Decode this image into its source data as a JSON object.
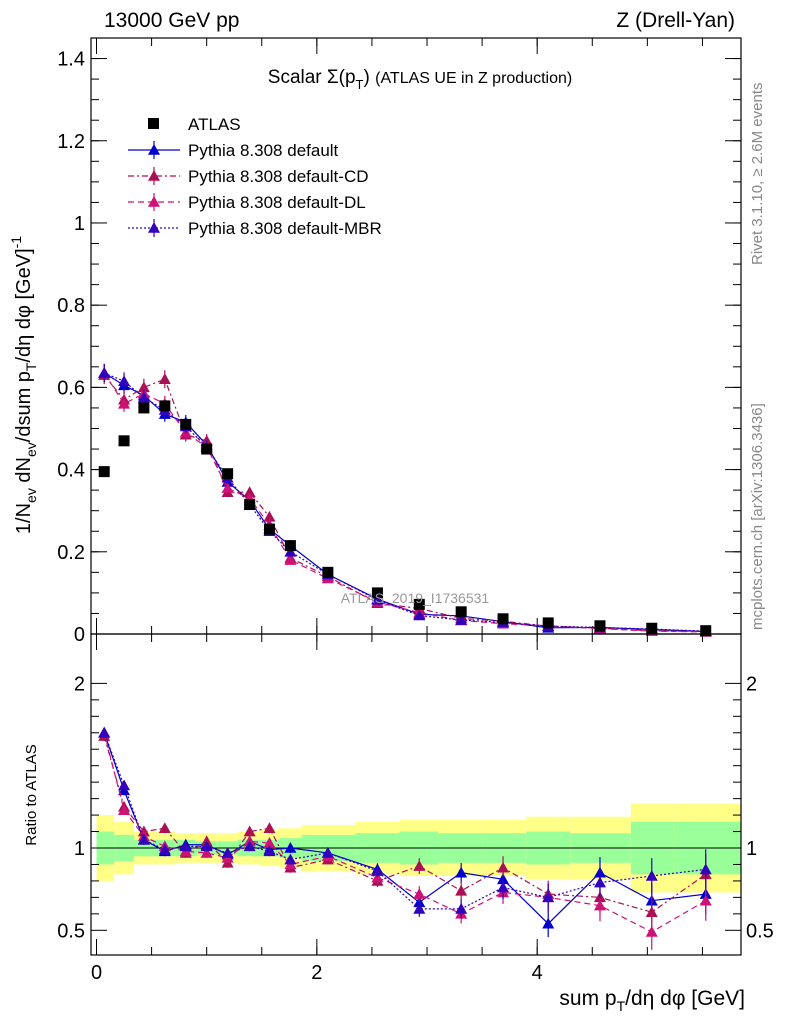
{
  "header": {
    "left": "13000 GeV pp",
    "right": "Z (Drell-Yan)"
  },
  "side_text": {
    "rivet": "Rivet 3.1.10, ≥ 2.6M events",
    "mcplots": "mcplots.cern.ch [arXiv:1306.3436]"
  },
  "chart_data": [
    {
      "type": "scatter",
      "title": "Scalar Σ(pT) (ATLAS UE in Z production)",
      "xlabel": "sum pT/dη dφ [GeV]",
      "ylabel": "1/Nev dNev/dsum pT/dη dφ [GeV]^-1",
      "watermark": "ATLAS_2019_I1736531",
      "xlim": [
        -0.05,
        5.85
      ],
      "ylim": [
        0,
        1.45
      ],
      "yticks": [
        "0",
        "0.2",
        "0.4",
        "0.6",
        "0.8",
        "1",
        "1.2",
        "1.4"
      ],
      "xticks": [
        "0",
        "2",
        "4"
      ],
      "legend_position": "top-left",
      "x": [
        0.07,
        0.25,
        0.43,
        0.62,
        0.81,
        1.0,
        1.19,
        1.39,
        1.57,
        1.76,
        2.1,
        2.55,
        2.93,
        3.31,
        3.69,
        4.1,
        4.57,
        5.04,
        5.53
      ],
      "series": [
        {
          "name": "ATLAS",
          "color": "#000000",
          "marker": "square",
          "values": [
            0.395,
            0.47,
            0.55,
            0.555,
            0.51,
            0.45,
            0.39,
            0.315,
            0.255,
            0.215,
            0.15,
            0.1,
            0.072,
            0.054,
            0.037,
            0.027,
            0.02,
            0.014,
            0.008
          ]
        },
        {
          "name": "Pythia 8.308 default",
          "color": "#0000cc",
          "marker": "triangle",
          "dash": "",
          "values": [
            0.635,
            0.605,
            0.58,
            0.535,
            0.515,
            0.46,
            0.37,
            0.325,
            0.255,
            0.215,
            0.145,
            0.085,
            0.048,
            0.044,
            0.03,
            0.015,
            0.016,
            0.011,
            0.006
          ]
        },
        {
          "name": "Pythia 8.308 default-CD",
          "color": "#aa1155",
          "marker": "triangle",
          "dash": "6,3,2,3",
          "values": [
            0.63,
            0.57,
            0.6,
            0.62,
            0.485,
            0.47,
            0.345,
            0.345,
            0.285,
            0.185,
            0.14,
            0.075,
            0.062,
            0.038,
            0.031,
            0.019,
            0.014,
            0.008,
            0.006
          ]
        },
        {
          "name": "Pythia 8.308 default-DL",
          "color": "#cc1177",
          "marker": "triangle",
          "dash": "6,4",
          "values": [
            0.635,
            0.56,
            0.585,
            0.56,
            0.49,
            0.455,
            0.355,
            0.33,
            0.265,
            0.18,
            0.135,
            0.078,
            0.052,
            0.033,
            0.025,
            0.02,
            0.013,
            0.007,
            0.005
          ]
        },
        {
          "name": "Pythia 8.308 default-MBR",
          "color": "#3300bb",
          "marker": "triangle",
          "dash": "2,2",
          "values": [
            0.635,
            0.615,
            0.575,
            0.545,
            0.505,
            0.455,
            0.38,
            0.315,
            0.25,
            0.2,
            0.145,
            0.083,
            0.045,
            0.034,
            0.028,
            0.019,
            0.016,
            0.012,
            0.007
          ]
        }
      ]
    },
    {
      "type": "line",
      "ylabel": "Ratio to ATLAS",
      "xlim": [
        -0.05,
        5.85
      ],
      "ylim": [
        0.35,
        2.3
      ],
      "yticks": [
        "0.5",
        "1",
        "2"
      ],
      "xticks": [
        "0",
        "2",
        "4"
      ],
      "bin_edges": [
        0.0,
        0.16,
        0.34,
        0.52,
        0.72,
        0.9,
        1.1,
        1.28,
        1.48,
        1.66,
        1.86,
        2.35,
        2.75,
        3.1,
        3.5,
        3.9,
        4.3,
        4.85,
        5.25,
        5.85
      ],
      "band_green": [
        0.1,
        0.08,
        0.05,
        0.05,
        0.05,
        0.04,
        0.04,
        0.05,
        0.05,
        0.06,
        0.08,
        0.09,
        0.1,
        0.09,
        0.09,
        0.1,
        0.09,
        0.16,
        0.16
      ],
      "band_yellow": [
        0.2,
        0.16,
        0.1,
        0.1,
        0.09,
        0.09,
        0.09,
        0.1,
        0.11,
        0.12,
        0.14,
        0.16,
        0.17,
        0.17,
        0.17,
        0.19,
        0.19,
        0.27,
        0.27
      ],
      "x": [
        0.07,
        0.25,
        0.43,
        0.62,
        0.81,
        1.0,
        1.19,
        1.39,
        1.57,
        1.76,
        2.1,
        2.55,
        2.93,
        3.31,
        3.69,
        4.1,
        4.57,
        5.04,
        5.53
      ],
      "series": [
        {
          "name": "Pythia 8.308 default",
          "color": "#0000cc",
          "dash": "",
          "values": [
            1.7,
            1.35,
            1.05,
            0.98,
            1.02,
            1.02,
            0.96,
            1.04,
            0.99,
            1.0,
            0.97,
            0.87,
            0.67,
            0.85,
            0.81,
            0.54,
            0.85,
            0.68,
            0.72
          ]
        },
        {
          "name": "Pythia 8.308 default-CD",
          "color": "#aa1155",
          "dash": "6,3,2,3",
          "values": [
            1.68,
            1.25,
            1.1,
            1.12,
            0.97,
            1.04,
            0.91,
            1.1,
            1.12,
            0.88,
            0.93,
            0.8,
            0.89,
            0.74,
            0.88,
            0.72,
            0.7,
            0.61,
            0.84
          ]
        },
        {
          "name": "Pythia 8.308 default-DL",
          "color": "#cc1177",
          "dash": "6,4",
          "values": [
            1.7,
            1.23,
            1.07,
            1.01,
            0.98,
            0.97,
            0.94,
            1.04,
            1.03,
            0.9,
            0.95,
            0.82,
            0.72,
            0.6,
            0.73,
            0.7,
            0.65,
            0.49,
            0.68
          ]
        },
        {
          "name": "Pythia 8.308 default-MBR",
          "color": "#3300bb",
          "dash": "2,2",
          "values": [
            1.7,
            1.38,
            1.05,
            0.99,
            1.01,
            1.01,
            0.97,
            1.01,
            0.98,
            0.93,
            0.97,
            0.86,
            0.63,
            0.63,
            0.76,
            0.7,
            0.79,
            0.83,
            0.87
          ]
        }
      ]
    }
  ]
}
